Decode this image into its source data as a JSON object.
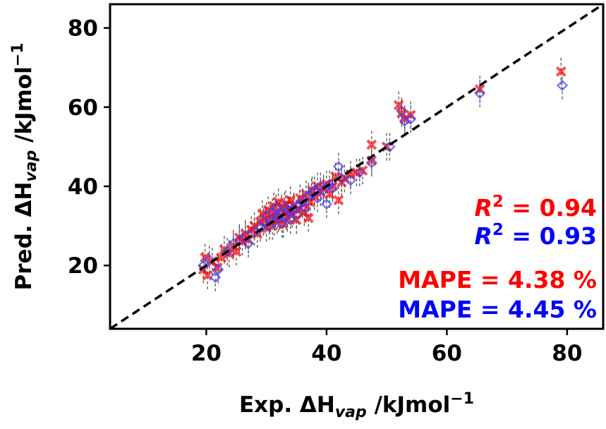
{
  "chart_data": {
    "type": "scatter",
    "xlabel": {
      "main": "Exp. ΔH",
      "sub": "vap",
      "unit": " /kJmol",
      "exp": "−1"
    },
    "ylabel": {
      "main": "Pred. ΔH",
      "sub": "vap",
      "unit": " /kJmol",
      "exp": "−1"
    },
    "xlim": [
      4,
      86
    ],
    "ylim": [
      4,
      86
    ],
    "xticks": [
      "20",
      "40",
      "60",
      "80"
    ],
    "yticks": [
      "20",
      "40",
      "60",
      "80"
    ],
    "xtick_values": [
      20,
      40,
      60,
      80
    ],
    "ytick_values": [
      20,
      40,
      60,
      80
    ],
    "parity_line": true,
    "grid": false,
    "annotations": [
      {
        "prefix": "R",
        "sup": "2",
        "text": " = 0.94",
        "color": "#ff0000"
      },
      {
        "prefix": "R",
        "sup": "2",
        "text": " = 0.93",
        "color": "#0000ff"
      },
      {
        "prefix": "",
        "sup": "",
        "text": "MAPE = 4.38 %",
        "color": "#ff0000"
      },
      {
        "prefix": "",
        "sup": "",
        "text": "MAPE = 4.45 %",
        "color": "#0000ff"
      }
    ],
    "series": [
      {
        "marker": "x",
        "color": "#ff0000",
        "points": [
          [
            19.5,
            19.0
          ],
          [
            19.8,
            22.0
          ],
          [
            20.2,
            17.5
          ],
          [
            21.0,
            21.0
          ],
          [
            21.8,
            19.5
          ],
          [
            22.5,
            22.0
          ],
          [
            23.0,
            24.0
          ],
          [
            23.8,
            23.0
          ],
          [
            24.5,
            25.0
          ],
          [
            25.0,
            23.5
          ],
          [
            25.5,
            27.0
          ],
          [
            26.0,
            26.0
          ],
          [
            26.5,
            28.0
          ],
          [
            27.0,
            26.5
          ],
          [
            27.5,
            29.0
          ],
          [
            28.0,
            30.0
          ],
          [
            28.5,
            28.0
          ],
          [
            29.0,
            31.0
          ],
          [
            29.3,
            33.0
          ],
          [
            29.8,
            31.5
          ],
          [
            30.0,
            29.5
          ],
          [
            30.3,
            34.0
          ],
          [
            30.6,
            32.0
          ],
          [
            31.0,
            30.0
          ],
          [
            31.2,
            35.0
          ],
          [
            31.5,
            33.0
          ],
          [
            31.8,
            31.5
          ],
          [
            32.0,
            36.0
          ],
          [
            32.2,
            32.5
          ],
          [
            32.5,
            34.5
          ],
          [
            32.8,
            30.5
          ],
          [
            33.0,
            33.5
          ],
          [
            33.2,
            35.5
          ],
          [
            33.5,
            32.0
          ],
          [
            33.8,
            34.0
          ],
          [
            34.0,
            36.5
          ],
          [
            34.3,
            33.0
          ],
          [
            34.6,
            35.0
          ],
          [
            35.0,
            31.5
          ],
          [
            35.3,
            34.0
          ],
          [
            35.6,
            37.0
          ],
          [
            36.0,
            35.5
          ],
          [
            36.3,
            33.5
          ],
          [
            36.6,
            38.0
          ],
          [
            37.0,
            32.0
          ],
          [
            37.3,
            36.0
          ],
          [
            37.6,
            39.0
          ],
          [
            38.0,
            37.5
          ],
          [
            38.5,
            40.0
          ],
          [
            39.0,
            38.5
          ],
          [
            39.5,
            39.5
          ],
          [
            40.0,
            40.5
          ],
          [
            40.5,
            38.0
          ],
          [
            41.0,
            40.0
          ],
          [
            41.5,
            42.5
          ],
          [
            42.0,
            36.5
          ],
          [
            42.5,
            41.0
          ],
          [
            43.0,
            42.0
          ],
          [
            44.0,
            43.0
          ],
          [
            45.0,
            43.5
          ],
          [
            46.0,
            44.0
          ],
          [
            47.5,
            50.5
          ],
          [
            47.5,
            46.5
          ],
          [
            50.0,
            50.0
          ],
          [
            52.0,
            60.5
          ],
          [
            52.5,
            58.5
          ],
          [
            53.0,
            57.0
          ],
          [
            54.0,
            58.0
          ],
          [
            65.5,
            64.5
          ],
          [
            79.0,
            69.0
          ]
        ]
      },
      {
        "marker": "diamond",
        "color": "#4040ff",
        "points": [
          [
            19.5,
            20.0
          ],
          [
            20.5,
            21.5
          ],
          [
            21.5,
            17.0
          ],
          [
            22.0,
            19.0
          ],
          [
            23.5,
            23.5
          ],
          [
            24.5,
            25.5
          ],
          [
            25.5,
            26.5
          ],
          [
            26.5,
            27.5
          ],
          [
            27.0,
            25.5
          ],
          [
            28.0,
            28.5
          ],
          [
            29.0,
            29.5
          ],
          [
            29.5,
            31.0
          ],
          [
            30.0,
            32.5
          ],
          [
            30.5,
            30.0
          ],
          [
            31.0,
            33.5
          ],
          [
            31.3,
            31.0
          ],
          [
            31.6,
            34.5
          ],
          [
            32.0,
            32.0
          ],
          [
            32.3,
            33.0
          ],
          [
            32.6,
            30.5
          ],
          [
            33.0,
            35.0
          ],
          [
            33.3,
            32.5
          ],
          [
            33.6,
            34.0
          ],
          [
            34.0,
            31.5
          ],
          [
            34.5,
            34.5
          ],
          [
            35.0,
            33.0
          ],
          [
            35.5,
            35.5
          ],
          [
            36.0,
            36.0
          ],
          [
            36.5,
            34.5
          ],
          [
            37.0,
            37.5
          ],
          [
            37.5,
            38.5
          ],
          [
            38.0,
            39.0
          ],
          [
            38.5,
            37.0
          ],
          [
            39.0,
            40.0
          ],
          [
            39.5,
            39.0
          ],
          [
            40.0,
            35.5
          ],
          [
            40.5,
            40.5
          ],
          [
            41.0,
            39.5
          ],
          [
            42.0,
            45.0
          ],
          [
            42.5,
            42.0
          ],
          [
            44.0,
            41.5
          ],
          [
            45.5,
            43.5
          ],
          [
            47.5,
            46.0
          ],
          [
            50.5,
            50.0
          ],
          [
            52.5,
            59.0
          ],
          [
            53.0,
            56.5
          ],
          [
            54.0,
            57.0
          ],
          [
            65.5,
            63.5
          ],
          [
            79.2,
            65.5
          ]
        ]
      }
    ],
    "error_bar_halfwidth": 3.5
  }
}
